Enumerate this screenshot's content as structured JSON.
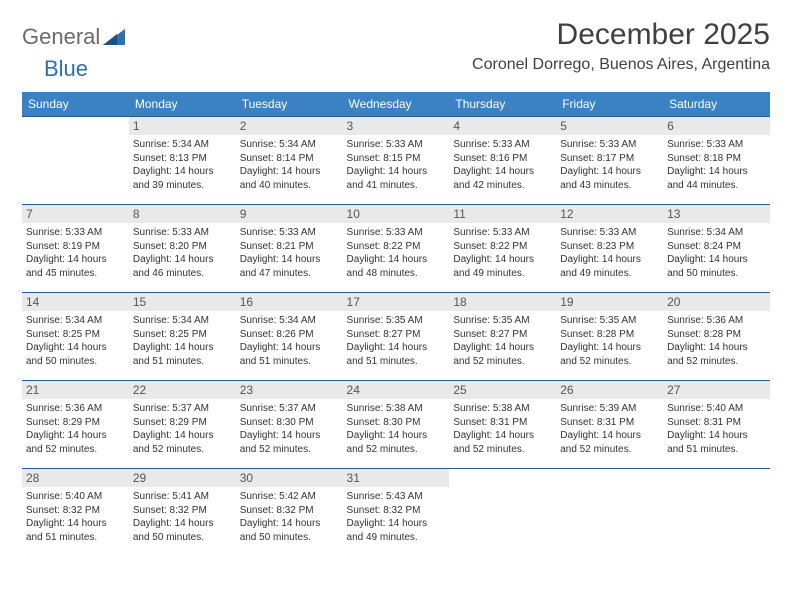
{
  "brand": {
    "part1": "General",
    "part2": "Blue"
  },
  "title": "December 2025",
  "location": "Coronel Dorrego, Buenos Aires, Argentina",
  "colors": {
    "header_bg": "#3a82c4",
    "header_text": "#ffffff",
    "row_border": "#2a5a8a",
    "daynum_bg": "#e9e9e9",
    "brand_gray": "#6b6b6b",
    "brand_blue": "#2f6faf",
    "text": "#333333"
  },
  "weekdays": [
    "Sunday",
    "Monday",
    "Tuesday",
    "Wednesday",
    "Thursday",
    "Friday",
    "Saturday"
  ],
  "weeks": [
    [
      {
        "n": "",
        "sr": "",
        "ss": "",
        "dl": ""
      },
      {
        "n": "1",
        "sr": "Sunrise: 5:34 AM",
        "ss": "Sunset: 8:13 PM",
        "dl": "Daylight: 14 hours and 39 minutes."
      },
      {
        "n": "2",
        "sr": "Sunrise: 5:34 AM",
        "ss": "Sunset: 8:14 PM",
        "dl": "Daylight: 14 hours and 40 minutes."
      },
      {
        "n": "3",
        "sr": "Sunrise: 5:33 AM",
        "ss": "Sunset: 8:15 PM",
        "dl": "Daylight: 14 hours and 41 minutes."
      },
      {
        "n": "4",
        "sr": "Sunrise: 5:33 AM",
        "ss": "Sunset: 8:16 PM",
        "dl": "Daylight: 14 hours and 42 minutes."
      },
      {
        "n": "5",
        "sr": "Sunrise: 5:33 AM",
        "ss": "Sunset: 8:17 PM",
        "dl": "Daylight: 14 hours and 43 minutes."
      },
      {
        "n": "6",
        "sr": "Sunrise: 5:33 AM",
        "ss": "Sunset: 8:18 PM",
        "dl": "Daylight: 14 hours and 44 minutes."
      }
    ],
    [
      {
        "n": "7",
        "sr": "Sunrise: 5:33 AM",
        "ss": "Sunset: 8:19 PM",
        "dl": "Daylight: 14 hours and 45 minutes."
      },
      {
        "n": "8",
        "sr": "Sunrise: 5:33 AM",
        "ss": "Sunset: 8:20 PM",
        "dl": "Daylight: 14 hours and 46 minutes."
      },
      {
        "n": "9",
        "sr": "Sunrise: 5:33 AM",
        "ss": "Sunset: 8:21 PM",
        "dl": "Daylight: 14 hours and 47 minutes."
      },
      {
        "n": "10",
        "sr": "Sunrise: 5:33 AM",
        "ss": "Sunset: 8:22 PM",
        "dl": "Daylight: 14 hours and 48 minutes."
      },
      {
        "n": "11",
        "sr": "Sunrise: 5:33 AM",
        "ss": "Sunset: 8:22 PM",
        "dl": "Daylight: 14 hours and 49 minutes."
      },
      {
        "n": "12",
        "sr": "Sunrise: 5:33 AM",
        "ss": "Sunset: 8:23 PM",
        "dl": "Daylight: 14 hours and 49 minutes."
      },
      {
        "n": "13",
        "sr": "Sunrise: 5:34 AM",
        "ss": "Sunset: 8:24 PM",
        "dl": "Daylight: 14 hours and 50 minutes."
      }
    ],
    [
      {
        "n": "14",
        "sr": "Sunrise: 5:34 AM",
        "ss": "Sunset: 8:25 PM",
        "dl": "Daylight: 14 hours and 50 minutes."
      },
      {
        "n": "15",
        "sr": "Sunrise: 5:34 AM",
        "ss": "Sunset: 8:25 PM",
        "dl": "Daylight: 14 hours and 51 minutes."
      },
      {
        "n": "16",
        "sr": "Sunrise: 5:34 AM",
        "ss": "Sunset: 8:26 PM",
        "dl": "Daylight: 14 hours and 51 minutes."
      },
      {
        "n": "17",
        "sr": "Sunrise: 5:35 AM",
        "ss": "Sunset: 8:27 PM",
        "dl": "Daylight: 14 hours and 51 minutes."
      },
      {
        "n": "18",
        "sr": "Sunrise: 5:35 AM",
        "ss": "Sunset: 8:27 PM",
        "dl": "Daylight: 14 hours and 52 minutes."
      },
      {
        "n": "19",
        "sr": "Sunrise: 5:35 AM",
        "ss": "Sunset: 8:28 PM",
        "dl": "Daylight: 14 hours and 52 minutes."
      },
      {
        "n": "20",
        "sr": "Sunrise: 5:36 AM",
        "ss": "Sunset: 8:28 PM",
        "dl": "Daylight: 14 hours and 52 minutes."
      }
    ],
    [
      {
        "n": "21",
        "sr": "Sunrise: 5:36 AM",
        "ss": "Sunset: 8:29 PM",
        "dl": "Daylight: 14 hours and 52 minutes."
      },
      {
        "n": "22",
        "sr": "Sunrise: 5:37 AM",
        "ss": "Sunset: 8:29 PM",
        "dl": "Daylight: 14 hours and 52 minutes."
      },
      {
        "n": "23",
        "sr": "Sunrise: 5:37 AM",
        "ss": "Sunset: 8:30 PM",
        "dl": "Daylight: 14 hours and 52 minutes."
      },
      {
        "n": "24",
        "sr": "Sunrise: 5:38 AM",
        "ss": "Sunset: 8:30 PM",
        "dl": "Daylight: 14 hours and 52 minutes."
      },
      {
        "n": "25",
        "sr": "Sunrise: 5:38 AM",
        "ss": "Sunset: 8:31 PM",
        "dl": "Daylight: 14 hours and 52 minutes."
      },
      {
        "n": "26",
        "sr": "Sunrise: 5:39 AM",
        "ss": "Sunset: 8:31 PM",
        "dl": "Daylight: 14 hours and 52 minutes."
      },
      {
        "n": "27",
        "sr": "Sunrise: 5:40 AM",
        "ss": "Sunset: 8:31 PM",
        "dl": "Daylight: 14 hours and 51 minutes."
      }
    ],
    [
      {
        "n": "28",
        "sr": "Sunrise: 5:40 AM",
        "ss": "Sunset: 8:32 PM",
        "dl": "Daylight: 14 hours and 51 minutes."
      },
      {
        "n": "29",
        "sr": "Sunrise: 5:41 AM",
        "ss": "Sunset: 8:32 PM",
        "dl": "Daylight: 14 hours and 50 minutes."
      },
      {
        "n": "30",
        "sr": "Sunrise: 5:42 AM",
        "ss": "Sunset: 8:32 PM",
        "dl": "Daylight: 14 hours and 50 minutes."
      },
      {
        "n": "31",
        "sr": "Sunrise: 5:43 AM",
        "ss": "Sunset: 8:32 PM",
        "dl": "Daylight: 14 hours and 49 minutes."
      },
      {
        "n": "",
        "sr": "",
        "ss": "",
        "dl": ""
      },
      {
        "n": "",
        "sr": "",
        "ss": "",
        "dl": ""
      },
      {
        "n": "",
        "sr": "",
        "ss": "",
        "dl": ""
      }
    ]
  ]
}
